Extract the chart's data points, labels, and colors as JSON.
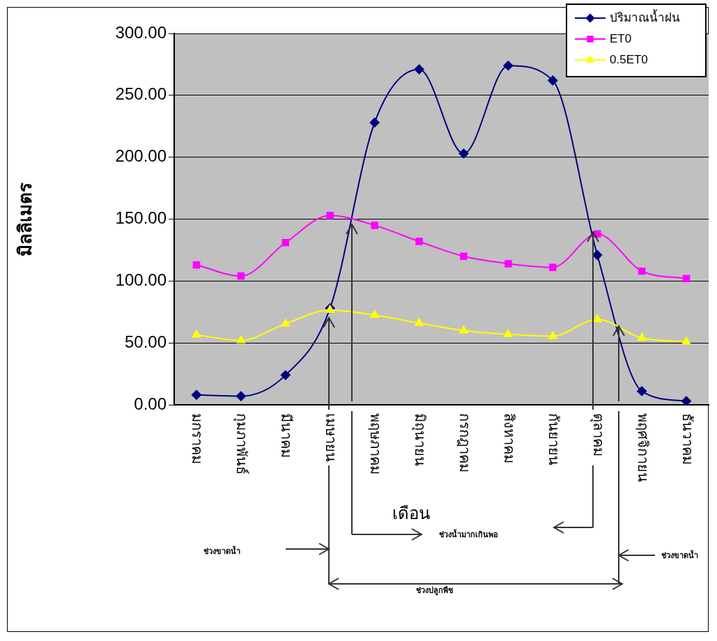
{
  "chart_data": {
    "type": "line",
    "xlabel": "เดือน",
    "ylabel": "มิลลิเมตร",
    "categories": [
      "มกราคม",
      "กุมภาพันธ์",
      "มีนาคม",
      "เมษายน",
      "พฤษภาคม",
      "มิถุนายน",
      "กรกฎาคม",
      "สิงหาคม",
      "กันยายน",
      "ตุลาคม",
      "พฤศจิกายน",
      "ธันวาคม"
    ],
    "series": [
      {
        "name": "ปริมาณน้ำฝน",
        "color": "#000080",
        "marker": "diamond",
        "values": [
          8,
          7,
          24,
          78,
          228,
          271,
          203,
          274,
          262,
          121,
          11,
          3
        ]
      },
      {
        "name": "ET0",
        "color": "#ff00ff",
        "marker": "square",
        "values": [
          113,
          104,
          131,
          153,
          145,
          132,
          120,
          114,
          111,
          138,
          108,
          102
        ]
      },
      {
        "name": "0.5ET0",
        "color": "#ffff00",
        "marker": "triangle",
        "values": [
          56.5,
          52,
          65.5,
          76.5,
          72.5,
          66,
          60,
          57,
          55.5,
          69,
          54,
          51
        ]
      }
    ],
    "ylim": [
      0,
      300
    ],
    "yticks": [
      {
        "value": 0,
        "label": "0.00"
      },
      {
        "value": 50,
        "label": "50.00"
      },
      {
        "value": 100,
        "label": "100.00"
      },
      {
        "value": 150,
        "label": "150.00"
      },
      {
        "value": 200,
        "label": "200.00"
      },
      {
        "value": 250,
        "label": "250.00"
      },
      {
        "value": 300,
        "label": "300.00"
      }
    ],
    "grid": "y",
    "legend": "top right",
    "line_style": "solid",
    "annotations": [
      "ช่วงขาดน้ำ",
      "ช่วงน้ำมากเกินพอ",
      "ช่วงปลูกพืช",
      "ช่วงขาดน้ำ"
    ]
  }
}
